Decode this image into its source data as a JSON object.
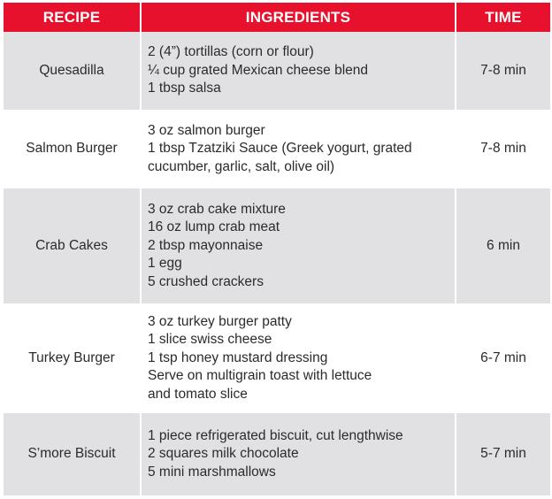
{
  "table": {
    "headers": {
      "recipe": "RECIPE",
      "ingredients": "INGREDIENTS",
      "time": "TIME"
    },
    "rows": [
      {
        "recipe": "Quesadilla",
        "ingredients": [
          "2 (4”) tortillas (corn or flour)",
          "¼ cup grated Mexican cheese blend",
          "1 tbsp salsa"
        ],
        "time": "7-8 min"
      },
      {
        "recipe": "Salmon Burger",
        "ingredients": [
          "3 oz salmon burger",
          "1 tbsp Tzatziki Sauce (Greek yogurt, grated",
          "cucumber, garlic, salt, olive oil)"
        ],
        "time": "7-8 min"
      },
      {
        "recipe": "Crab Cakes",
        "ingredients": [
          "3 oz crab cake mixture",
          "16 oz lump crab meat",
          "2 tbsp mayonnaise",
          "1 egg",
          "5 crushed crackers"
        ],
        "time": "6 min"
      },
      {
        "recipe": "Turkey Burger",
        "ingredients": [
          "3 oz turkey burger patty",
          "1 slice swiss cheese",
          "1 tsp honey mustard dressing",
          "Serve on multigrain toast with lettuce",
          "and tomato slice"
        ],
        "time": "6-7 min"
      },
      {
        "recipe": "S’more Biscuit",
        "ingredients": [
          "1 piece refrigerated biscuit, cut lengthwise",
          "2 squares milk chocolate",
          "5 mini marshmallows"
        ],
        "time": "5-7 min"
      }
    ]
  },
  "colors": {
    "header_bg": "#e8112d",
    "header_text": "#ffffff",
    "shaded_row_bg": "#e1e1e3",
    "plain_row_bg": "#ffffff",
    "body_text": "#2b2b2b"
  }
}
